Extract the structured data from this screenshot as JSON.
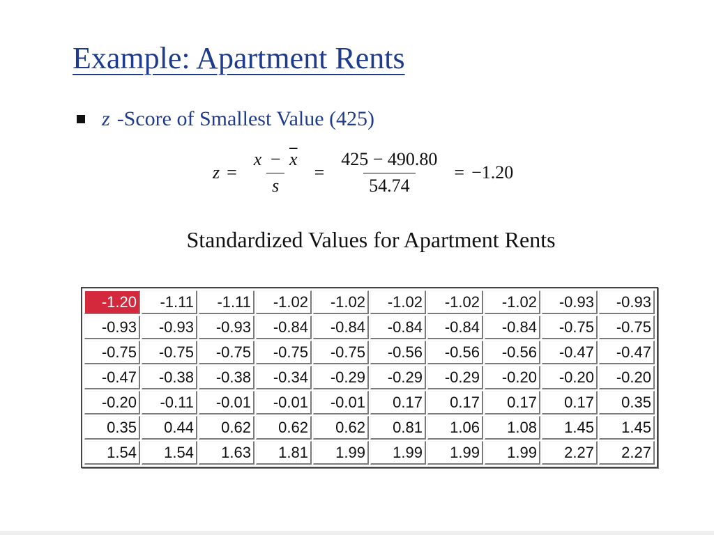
{
  "slide": {
    "title": "Example: Apartment Rents",
    "bullet": {
      "symbol": "z",
      "text": "-Score of Smallest Value (425)"
    },
    "formula": {
      "lhs": "z",
      "equals": "=",
      "num_x": "x",
      "minus": "−",
      "num_xbar": "x",
      "den_s": "s",
      "num_values": "425 − 490.80",
      "den_value": "54.74",
      "result": "−1.20"
    },
    "table_title": "Standardized Values for Apartment Rents"
  },
  "chart_data": {
    "type": "table",
    "title": "Standardized Values for Apartment Rents",
    "rows": [
      [
        "-1.20",
        "-1.11",
        "-1.11",
        "-1.02",
        "-1.02",
        "-1.02",
        "-1.02",
        "-1.02",
        "-0.93",
        "-0.93"
      ],
      [
        "-0.93",
        "-0.93",
        "-0.93",
        "-0.84",
        "-0.84",
        "-0.84",
        "-0.84",
        "-0.84",
        "-0.75",
        "-0.75"
      ],
      [
        "-0.75",
        "-0.75",
        "-0.75",
        "-0.75",
        "-0.75",
        "-0.56",
        "-0.56",
        "-0.56",
        "-0.47",
        "-0.47"
      ],
      [
        "-0.47",
        "-0.38",
        "-0.38",
        "-0.34",
        "-0.29",
        "-0.29",
        "-0.29",
        "-0.20",
        "-0.20",
        "-0.20"
      ],
      [
        "-0.20",
        "-0.11",
        "-0.01",
        "-0.01",
        "-0.01",
        "0.17",
        "0.17",
        "0.17",
        "0.17",
        "0.35"
      ],
      [
        "0.35",
        "0.44",
        "0.62",
        "0.62",
        "0.62",
        "0.81",
        "1.06",
        "1.08",
        "1.45",
        "1.45"
      ],
      [
        "1.54",
        "1.54",
        "1.63",
        "1.81",
        "1.99",
        "1.99",
        "1.99",
        "1.99",
        "2.27",
        "2.27"
      ]
    ],
    "highlight_cell": [
      0,
      0
    ],
    "highlight_color": "#d4283c"
  },
  "colors": {
    "title": "#1f3b8c",
    "highlight": "#d4283c",
    "text": "#111111"
  }
}
